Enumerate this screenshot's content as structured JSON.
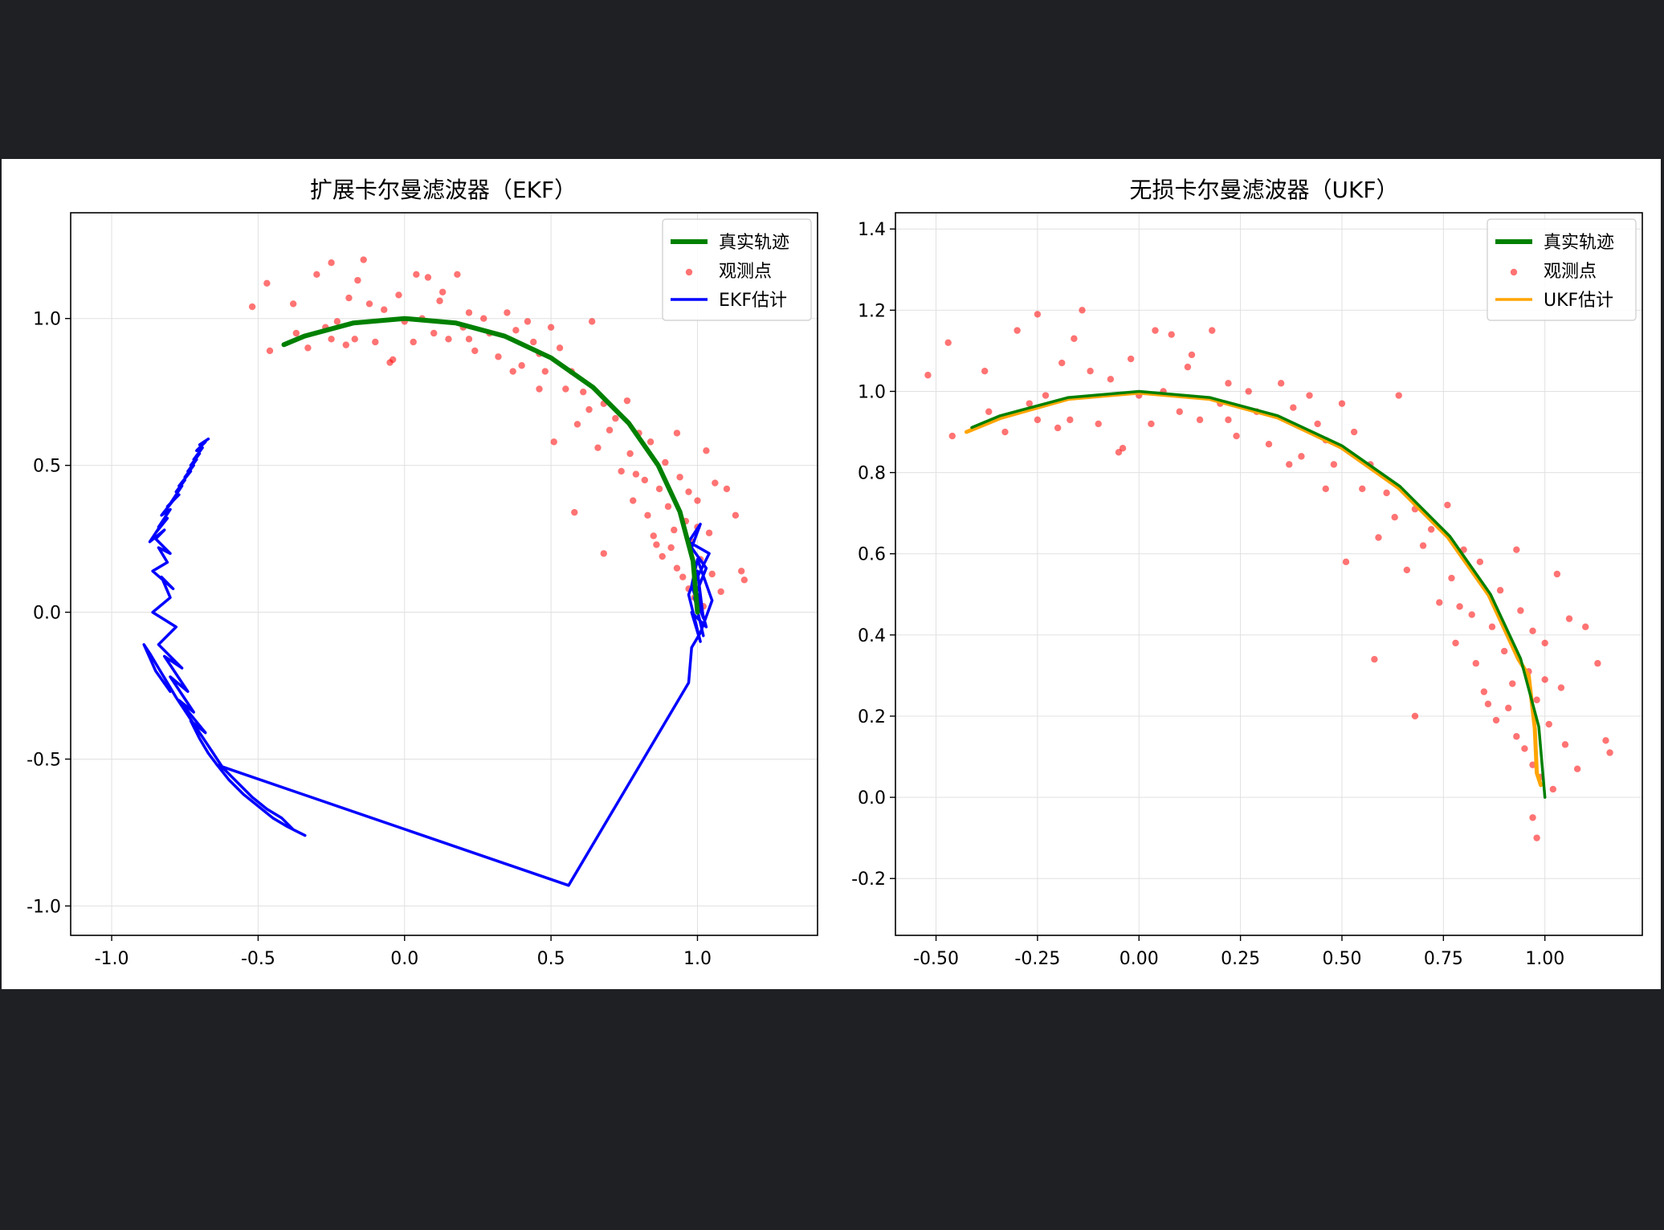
{
  "colors": {
    "background": "#1f2023",
    "figure": "#ffffff",
    "truth": "#008000",
    "observation": "#ff0000",
    "ekf": "#0000ff",
    "ukf": "#ffa500",
    "grid": "#e0e0e0"
  },
  "chart_data": [
    {
      "type": "line",
      "title": "扩展卡尔曼滤波器（EKF）",
      "xlabel": "",
      "ylabel": "",
      "xlim": [
        -1.14,
        1.41
      ],
      "ylim": [
        -1.1,
        1.36
      ],
      "xticks": [
        -1.0,
        -0.5,
        0.0,
        0.5,
        1.0
      ],
      "xtick_labels": [
        "-1.0",
        "-0.5",
        "0.0",
        "0.5",
        "1.0"
      ],
      "yticks": [
        -1.0,
        -0.5,
        0.0,
        0.5,
        1.0
      ],
      "ytick_labels": [
        "-1.0",
        "-0.5",
        "0.0",
        "0.5",
        "1.0"
      ],
      "grid": true,
      "legend_position": "top-right",
      "legend": [
        "真实轨迹",
        "观测点",
        "EKF估计"
      ],
      "series": [
        {
          "name": "真实轨迹",
          "kind": "line",
          "color": "#008000",
          "x": [
            1.0,
            0.985,
            0.94,
            0.866,
            0.766,
            0.643,
            0.5,
            0.342,
            0.174,
            0.0,
            -0.174,
            -0.342,
            -0.412
          ],
          "y": [
            0.0,
            0.174,
            0.342,
            0.5,
            0.643,
            0.766,
            0.866,
            0.94,
            0.985,
            1.0,
            0.985,
            0.94,
            0.911
          ]
        },
        {
          "name": "观测点",
          "kind": "scatter",
          "color": "#ff0000",
          "x": [
            -0.52,
            -0.47,
            -0.46,
            -0.38,
            -0.37,
            -0.33,
            -0.3,
            -0.27,
            -0.25,
            -0.23,
            -0.2,
            -0.19,
            -0.17,
            -0.14,
            -0.12,
            -0.1,
            -0.07,
            -0.04,
            -0.02,
            0.0,
            0.03,
            0.04,
            0.06,
            0.08,
            0.1,
            0.12,
            0.15,
            0.18,
            0.2,
            0.22,
            0.24,
            0.27,
            0.29,
            0.32,
            0.35,
            0.38,
            0.4,
            0.42,
            0.44,
            0.46,
            0.48,
            0.5,
            0.51,
            0.53,
            0.55,
            0.57,
            0.59,
            0.61,
            0.63,
            0.64,
            0.66,
            0.68,
            0.7,
            0.72,
            0.74,
            0.76,
            0.77,
            0.78,
            0.8,
            0.82,
            0.83,
            0.84,
            0.85,
            0.87,
            0.88,
            0.89,
            0.9,
            0.91,
            0.92,
            0.93,
            0.94,
            0.95,
            0.96,
            0.97,
            0.98,
            0.99,
            1.0,
            1.01,
            1.02,
            1.03,
            1.04,
            1.05,
            1.06,
            1.08,
            1.1,
            1.13,
            1.15,
            1.16,
            -0.25,
            -0.16,
            -0.05,
            0.13,
            0.22,
            0.37,
            0.46,
            0.58,
            0.68,
            0.79,
            0.86,
            0.93,
            0.97,
            1.0
          ],
          "y": [
            1.04,
            1.12,
            0.89,
            1.05,
            0.95,
            0.9,
            1.15,
            0.97,
            1.19,
            0.99,
            0.91,
            1.07,
            0.93,
            1.2,
            1.05,
            0.92,
            1.03,
            0.86,
            1.08,
            0.99,
            0.92,
            1.15,
            1.0,
            1.14,
            0.95,
            1.06,
            0.93,
            1.15,
            0.97,
            1.02,
            0.89,
            1.0,
            0.95,
            0.87,
            1.02,
            0.96,
            0.84,
            0.99,
            0.92,
            0.88,
            0.82,
            0.97,
            0.58,
            0.9,
            0.76,
            0.82,
            0.64,
            0.75,
            0.69,
            0.99,
            0.56,
            0.71,
            0.62,
            0.66,
            0.48,
            0.72,
            0.54,
            0.38,
            0.61,
            0.45,
            0.33,
            0.58,
            0.26,
            0.42,
            0.19,
            0.51,
            0.36,
            0.22,
            0.28,
            0.15,
            0.46,
            0.12,
            0.31,
            0.08,
            0.24,
            0.05,
            0.38,
            0.18,
            0.02,
            0.55,
            0.27,
            0.13,
            0.44,
            0.07,
            0.42,
            0.33,
            0.14,
            0.11,
            0.93,
            1.13,
            0.85,
            1.09,
            0.93,
            0.82,
            0.76,
            0.34,
            0.2,
            0.47,
            0.23,
            0.61,
            0.41,
            0.29
          ]
        },
        {
          "name": "EKF估计",
          "kind": "line",
          "color": "#0000ff",
          "x": [
            1.02,
            0.99,
            1.03,
            0.98,
            1.01,
            0.97,
            1.04,
            0.99,
            1.03,
            0.98,
            1.01,
            0.97,
            1.0,
            1.02,
            0.98,
            1.0,
            1.05,
            1.01,
            0.98,
            0.97,
            0.56,
            -0.64,
            -0.67,
            -0.7,
            -0.73,
            -0.68,
            -0.77,
            -0.72,
            -0.8,
            -0.74,
            -0.82,
            -0.76,
            -0.84,
            -0.78,
            -0.86,
            -0.8,
            -0.83,
            -0.79,
            -0.86,
            -0.81,
            -0.84,
            -0.8,
            -0.85,
            -0.82,
            -0.87,
            -0.83,
            -0.85,
            -0.81,
            -0.84,
            -0.8,
            -0.83,
            -0.79,
            -0.81,
            -0.77,
            -0.8,
            -0.76,
            -0.78,
            -0.75,
            -0.77,
            -0.73,
            -0.75,
            -0.72,
            -0.74,
            -0.71,
            -0.73,
            -0.7,
            -0.72,
            -0.69,
            -0.71,
            -0.68,
            -0.7,
            -0.67
          ],
          "y": [
            -0.08,
            0.05,
            0.15,
            0.22,
            0.3,
            0.24,
            0.2,
            0.1,
            -0.05,
            0.0,
            -0.1,
            0.06,
            0.14,
            -0.02,
            0.09,
            0.18,
            0.04,
            -0.07,
            -0.12,
            -0.24,
            -0.93,
            -0.52,
            -0.48,
            -0.43,
            -0.37,
            -0.41,
            -0.3,
            -0.34,
            -0.22,
            -0.27,
            -0.15,
            -0.19,
            -0.11,
            -0.05,
            0.0,
            0.05,
            0.12,
            0.08,
            0.14,
            0.17,
            0.22,
            0.2,
            0.25,
            0.28,
            0.24,
            0.3,
            0.27,
            0.32,
            0.29,
            0.35,
            0.33,
            0.38,
            0.36,
            0.4,
            0.37,
            0.43,
            0.41,
            0.45,
            0.43,
            0.48,
            0.46,
            0.5,
            0.48,
            0.52,
            0.5,
            0.54,
            0.52,
            0.56,
            0.55,
            0.58,
            0.57,
            0.59
          ]
        },
        {
          "name": "EKF估计-branch",
          "kind": "line",
          "color": "#0000ff",
          "x": [
            -0.64,
            -0.6,
            -0.55,
            -0.5,
            -0.45,
            -0.4,
            -0.36,
            -0.34,
            -0.38,
            -0.42,
            -0.47,
            -0.52,
            -0.57,
            -0.62,
            -0.66,
            -0.7,
            -0.74,
            -0.78,
            -0.81,
            -0.84,
            -0.87,
            -0.89,
            -0.85,
            -0.8
          ],
          "y": [
            -0.52,
            -0.57,
            -0.62,
            -0.66,
            -0.7,
            -0.73,
            -0.75,
            -0.76,
            -0.74,
            -0.7,
            -0.67,
            -0.63,
            -0.58,
            -0.53,
            -0.47,
            -0.41,
            -0.35,
            -0.29,
            -0.24,
            -0.19,
            -0.14,
            -0.11,
            -0.2,
            -0.27
          ]
        }
      ]
    },
    {
      "type": "line",
      "title": "无损卡尔曼滤波器（UKF）",
      "xlabel": "",
      "ylabel": "",
      "xlim": [
        -0.6,
        1.24
      ],
      "ylim": [
        -0.34,
        1.44
      ],
      "xticks": [
        -0.5,
        -0.25,
        0.0,
        0.25,
        0.5,
        0.75,
        1.0
      ],
      "xtick_labels": [
        "-0.50",
        "-0.25",
        "0.00",
        "0.25",
        "0.50",
        "0.75",
        "1.00"
      ],
      "yticks": [
        -0.2,
        0.0,
        0.2,
        0.4,
        0.6,
        0.8,
        1.0,
        1.2,
        1.4
      ],
      "ytick_labels": [
        "-0.2",
        "0.0",
        "0.2",
        "0.4",
        "0.6",
        "0.8",
        "1.0",
        "1.2",
        "1.4"
      ],
      "grid": true,
      "legend_position": "top-right",
      "legend": [
        "真实轨迹",
        "观测点",
        "UKF估计"
      ],
      "series": [
        {
          "name": "真实轨迹",
          "kind": "line",
          "color": "#008000",
          "x": [
            1.0,
            0.985,
            0.94,
            0.866,
            0.766,
            0.643,
            0.5,
            0.342,
            0.174,
            0.0,
            -0.174,
            -0.342,
            -0.412
          ],
          "y": [
            0.0,
            0.174,
            0.342,
            0.5,
            0.643,
            0.766,
            0.866,
            0.94,
            0.985,
            1.0,
            0.985,
            0.94,
            0.911
          ]
        },
        {
          "name": "观测点",
          "kind": "scatter",
          "color": "#ff0000",
          "x": [
            -0.52,
            -0.47,
            -0.46,
            -0.38,
            -0.37,
            -0.33,
            -0.3,
            -0.27,
            -0.25,
            -0.23,
            -0.2,
            -0.19,
            -0.17,
            -0.14,
            -0.12,
            -0.1,
            -0.07,
            -0.04,
            -0.02,
            0.0,
            0.03,
            0.04,
            0.06,
            0.08,
            0.1,
            0.12,
            0.15,
            0.18,
            0.2,
            0.22,
            0.24,
            0.27,
            0.29,
            0.32,
            0.35,
            0.38,
            0.4,
            0.42,
            0.44,
            0.46,
            0.48,
            0.5,
            0.51,
            0.53,
            0.55,
            0.57,
            0.59,
            0.61,
            0.63,
            0.64,
            0.66,
            0.68,
            0.7,
            0.72,
            0.74,
            0.76,
            0.77,
            0.78,
            0.8,
            0.82,
            0.83,
            0.84,
            0.85,
            0.87,
            0.88,
            0.89,
            0.9,
            0.91,
            0.92,
            0.93,
            0.94,
            0.95,
            0.96,
            0.97,
            0.98,
            0.99,
            1.0,
            1.01,
            1.02,
            1.03,
            1.04,
            1.05,
            1.06,
            1.08,
            1.1,
            1.13,
            1.15,
            1.16,
            -0.25,
            -0.16,
            -0.05,
            0.13,
            0.22,
            0.37,
            0.46,
            0.58,
            0.68,
            0.79,
            0.86,
            0.93,
            0.97,
            1.0,
            0.97,
            0.98
          ],
          "y": [
            1.04,
            1.12,
            0.89,
            1.05,
            0.95,
            0.9,
            1.15,
            0.97,
            1.19,
            0.99,
            0.91,
            1.07,
            0.93,
            1.2,
            1.05,
            0.92,
            1.03,
            0.86,
            1.08,
            0.99,
            0.92,
            1.15,
            1.0,
            1.14,
            0.95,
            1.06,
            0.93,
            1.15,
            0.97,
            1.02,
            0.89,
            1.0,
            0.95,
            0.87,
            1.02,
            0.96,
            0.84,
            0.99,
            0.92,
            0.88,
            0.82,
            0.97,
            0.58,
            0.9,
            0.76,
            0.82,
            0.64,
            0.75,
            0.69,
            0.99,
            0.56,
            0.71,
            0.62,
            0.66,
            0.48,
            0.72,
            0.54,
            0.38,
            0.61,
            0.45,
            0.33,
            0.58,
            0.26,
            0.42,
            0.19,
            0.51,
            0.36,
            0.22,
            0.28,
            0.15,
            0.46,
            0.12,
            0.31,
            0.08,
            0.24,
            0.05,
            0.38,
            0.18,
            0.02,
            0.55,
            0.27,
            0.13,
            0.44,
            0.07,
            0.42,
            0.33,
            0.14,
            0.11,
            0.93,
            1.13,
            0.85,
            1.09,
            0.93,
            0.82,
            0.76,
            0.34,
            0.2,
            0.47,
            0.23,
            0.61,
            0.41,
            0.29,
            -0.05,
            -0.1
          ]
        },
        {
          "name": "UKF估计",
          "kind": "line",
          "color": "#ffa500",
          "x": [
            0.99,
            0.98,
            0.975,
            0.96,
            0.935,
            0.862,
            0.762,
            0.64,
            0.498,
            0.341,
            0.173,
            0.0,
            -0.173,
            -0.34,
            -0.425
          ],
          "y": [
            0.03,
            0.06,
            0.17,
            0.3,
            0.34,
            0.498,
            0.64,
            0.762,
            0.862,
            0.936,
            0.982,
            0.997,
            0.982,
            0.935,
            0.9
          ]
        }
      ]
    }
  ]
}
